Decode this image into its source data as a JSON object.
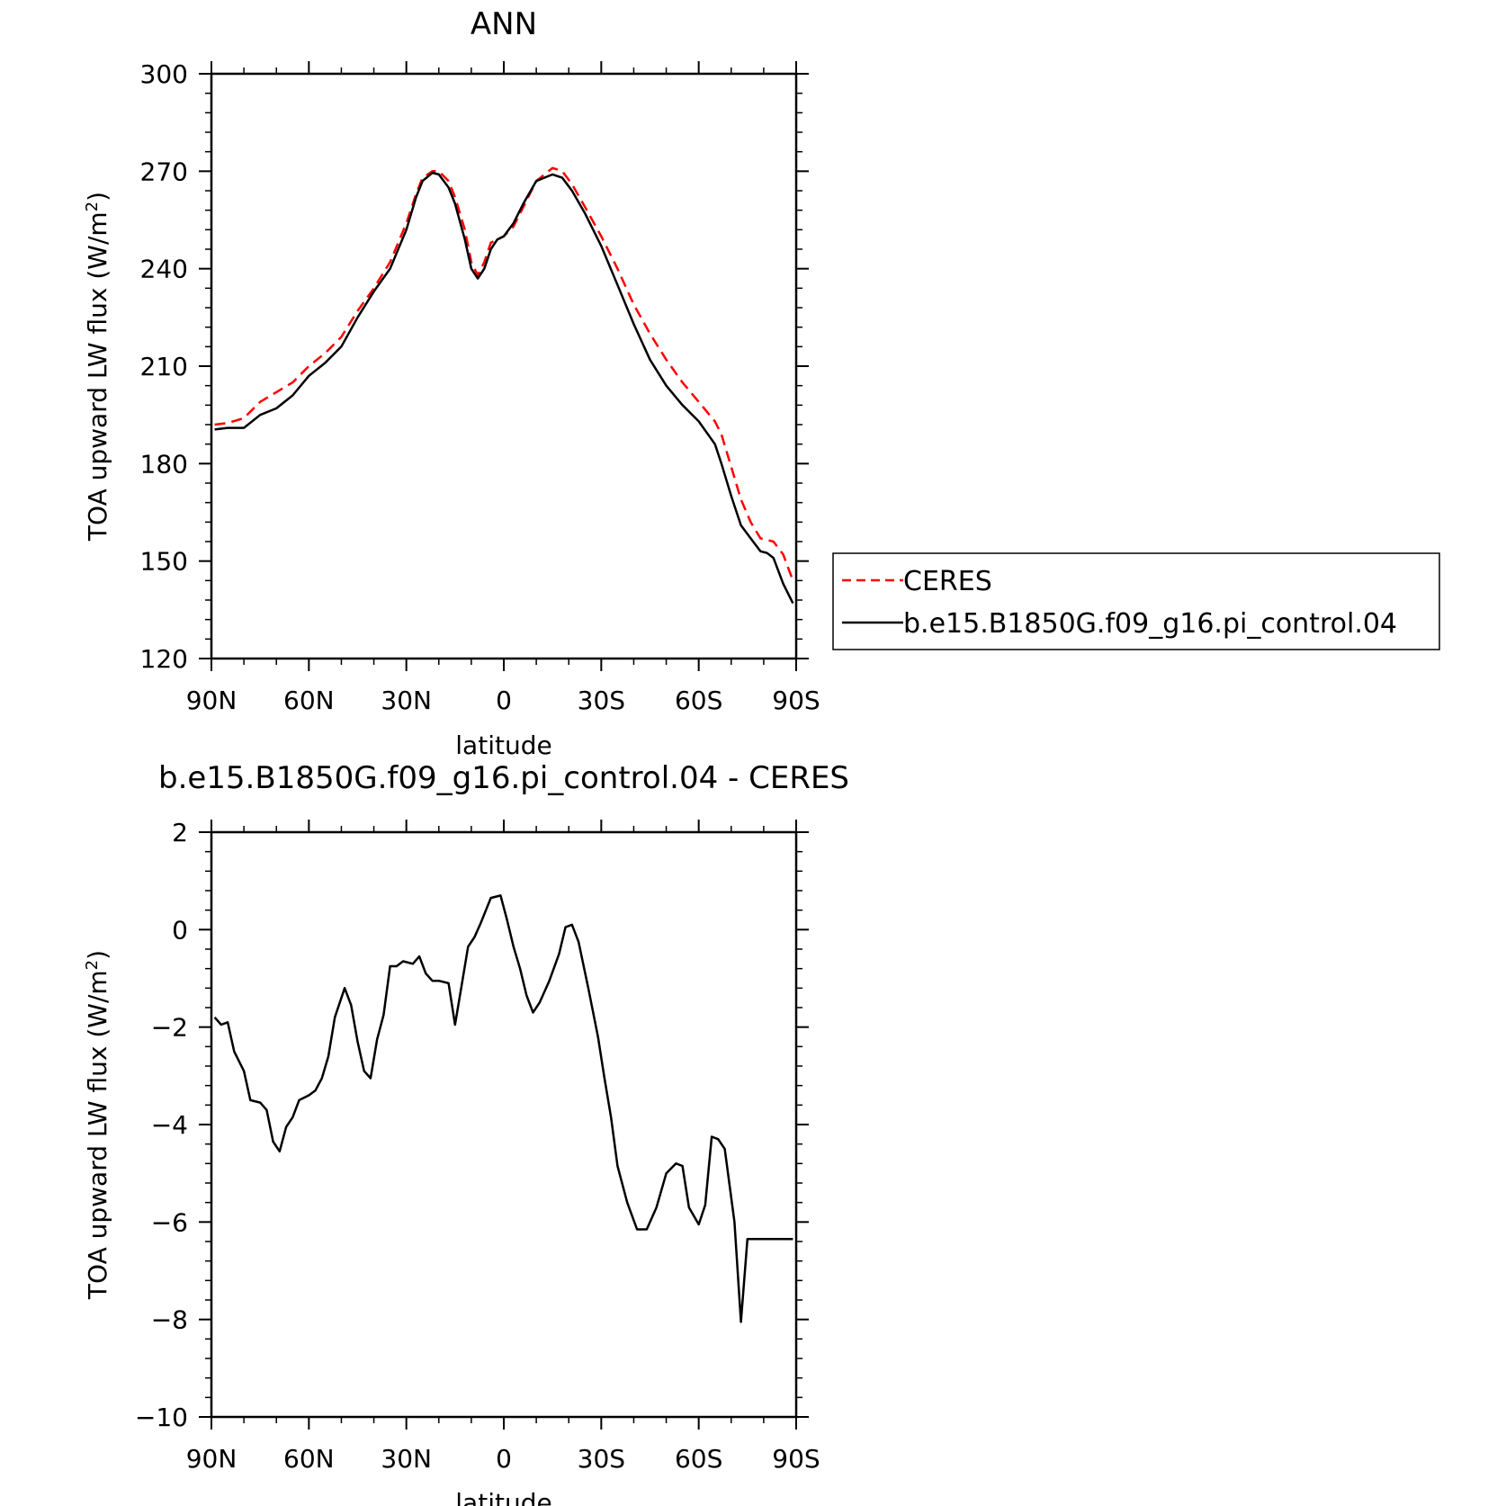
{
  "chart_data": [
    {
      "type": "line",
      "title": "ANN",
      "xlabel": "latitude",
      "ylabel": "TOA upward LW flux (W/m",
      "ylabel_sup": "2",
      "ylabel_end": ")",
      "xlim": [
        90,
        -90
      ],
      "ylim": [
        120,
        300
      ],
      "x_ticks": [
        90,
        60,
        30,
        0,
        -30,
        -60,
        -90
      ],
      "x_tick_labels": [
        "90N",
        "60N",
        "30N",
        "0",
        "30S",
        "60S",
        "90S"
      ],
      "y_ticks": [
        120,
        150,
        180,
        210,
        240,
        270,
        300
      ],
      "y_tick_labels": [
        "120",
        "150",
        "180",
        "210",
        "240",
        "270",
        "300"
      ],
      "legend": {
        "position": "right",
        "entries": [
          {
            "label": "CERES",
            "color": "#ff0000",
            "dash": "dashed"
          },
          {
            "label": "b.e15.B1850G.f09_g16.pi_control.04",
            "color": "#000000",
            "dash": "solid"
          }
        ]
      },
      "series": [
        {
          "name": "CERES",
          "color": "#ff0000",
          "dash": "dashed",
          "x": [
            89,
            85,
            80,
            75,
            70,
            65,
            60,
            55,
            50,
            45,
            40,
            35,
            30,
            27,
            25,
            22,
            20,
            17,
            15,
            12,
            10,
            8,
            6,
            4,
            2,
            0,
            -3,
            -6,
            -10,
            -15,
            -18,
            -21,
            -25,
            -30,
            -35,
            -40,
            -45,
            -50,
            -55,
            -60,
            -65,
            -67,
            -70,
            -73,
            -76,
            -79,
            -83,
            -86,
            -89
          ],
          "values": [
            192,
            192.5,
            194,
            199,
            202,
            205,
            210,
            214,
            219,
            227,
            234,
            242,
            254,
            263,
            268,
            270,
            270,
            267,
            262,
            252,
            242,
            238,
            242,
            248,
            249,
            250,
            253,
            259,
            267,
            271,
            270,
            266,
            259,
            250,
            240,
            229,
            220,
            212,
            205,
            199,
            193,
            189,
            179,
            169,
            162,
            157,
            156,
            152,
            144
          ]
        },
        {
          "name": "b.e15.B1850G.f09_g16.pi_control.04",
          "color": "#000000",
          "dash": "solid",
          "x": [
            89,
            85,
            80,
            75,
            70,
            65,
            60,
            55,
            50,
            45,
            40,
            35,
            30,
            27,
            25,
            22,
            20,
            17,
            15,
            12,
            10,
            8,
            6,
            4,
            2,
            0,
            -3,
            -6,
            -10,
            -15,
            -18,
            -21,
            -25,
            -30,
            -35,
            -40,
            -45,
            -50,
            -55,
            -60,
            -65,
            -67,
            -70,
            -73,
            -76,
            -79,
            -81,
            -83,
            -86,
            -89
          ],
          "values": [
            190.5,
            191,
            191,
            195,
            197,
            201,
            207,
            211,
            216,
            225,
            233,
            240,
            252,
            262,
            267,
            269.5,
            269,
            265,
            260,
            249,
            240,
            237,
            240,
            246,
            249,
            250,
            254,
            260,
            267,
            269,
            268,
            264,
            257,
            247,
            235,
            223,
            212,
            204,
            198,
            193,
            186,
            180,
            170,
            161,
            157,
            153,
            152.5,
            151,
            143,
            137
          ]
        }
      ]
    },
    {
      "type": "line",
      "title": "b.e15.B1850G.f09_g16.pi_control.04 - CERES",
      "xlabel": "latitude",
      "ylabel": "TOA upward LW flux (W/m",
      "ylabel_sup": "2",
      "ylabel_end": ")",
      "xlim": [
        90,
        -90
      ],
      "ylim": [
        -10,
        2
      ],
      "x_ticks": [
        90,
        60,
        30,
        0,
        -30,
        -60,
        -90
      ],
      "x_tick_labels": [
        "90N",
        "60N",
        "30N",
        "0",
        "30S",
        "60S",
        "90S"
      ],
      "y_ticks": [
        -10,
        -8,
        -6,
        -4,
        -2,
        0,
        2
      ],
      "y_tick_labels": [
        "−10",
        "−8",
        "−6",
        "−4",
        "−2",
        "0",
        "2"
      ],
      "series": [
        {
          "color": "#000000",
          "dash": "solid",
          "x": [
            89,
            87,
            85,
            83,
            80,
            78,
            75,
            73,
            71,
            69,
            67,
            65,
            63,
            60,
            58,
            56,
            54,
            52,
            49,
            47,
            45,
            43,
            41,
            39,
            37,
            35,
            33,
            31,
            28,
            26,
            24,
            22,
            20,
            17,
            15,
            13,
            11,
            9,
            7,
            4,
            1,
            -1,
            -3,
            -5,
            -7,
            -9,
            -11,
            -14,
            -17,
            -19,
            -21,
            -23,
            -26,
            -29,
            -31,
            -33,
            -35,
            -38,
            -41,
            -44,
            -47,
            -50,
            -53,
            -55,
            -57,
            -60,
            -62,
            -64,
            -66,
            -68,
            -71,
            -73,
            -75,
            -77,
            -79,
            -81,
            -84,
            -86,
            -89
          ],
          "values": [
            -1.8,
            -1.95,
            -1.9,
            -2.5,
            -2.9,
            -3.5,
            -3.55,
            -3.7,
            -4.35,
            -4.55,
            -4.05,
            -3.85,
            -3.5,
            -3.4,
            -3.3,
            -3.05,
            -2.6,
            -1.8,
            -1.2,
            -1.55,
            -2.3,
            -2.9,
            -3.05,
            -2.25,
            -1.75,
            -0.75,
            -0.75,
            -0.65,
            -0.7,
            -0.55,
            -0.9,
            -1.05,
            -1.05,
            -1.1,
            -1.95,
            -1.15,
            -0.35,
            -0.15,
            0.15,
            0.65,
            0.7,
            0.2,
            -0.35,
            -0.8,
            -1.35,
            -1.7,
            -1.5,
            -1.05,
            -0.5,
            0.05,
            0.1,
            -0.25,
            -1.2,
            -2.2,
            -3.05,
            -3.85,
            -4.85,
            -5.6,
            -6.15,
            -6.15,
            -5.7,
            -5.0,
            -4.8,
            -4.85,
            -5.7,
            -6.05,
            -5.65,
            -4.25,
            -4.3,
            -4.5,
            -6.0,
            -8.05,
            -6.35,
            -6.35,
            -6.35,
            -6.35,
            -6.35,
            -6.35,
            -6.35
          ]
        }
      ]
    }
  ]
}
